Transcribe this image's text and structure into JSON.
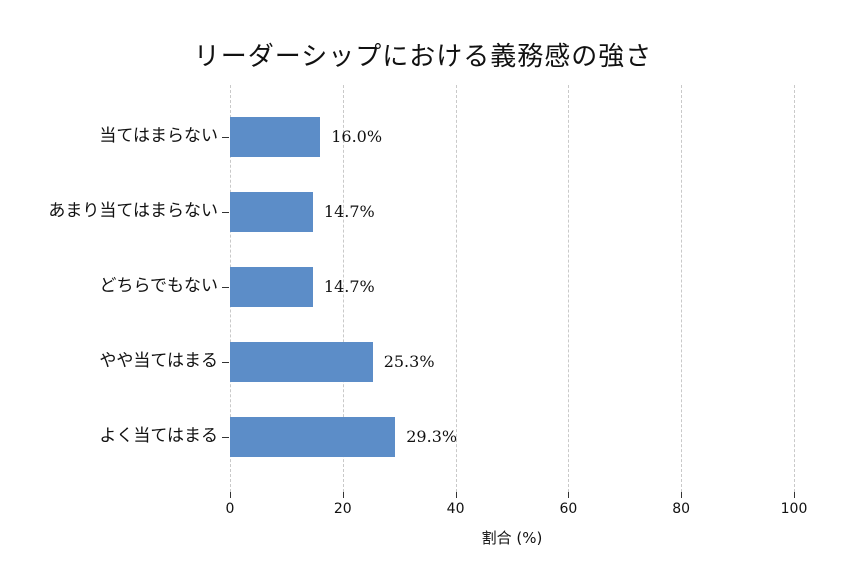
{
  "chart_data": {
    "type": "bar",
    "orientation": "horizontal",
    "title": "リーダーシップにおける義務感の強さ",
    "xlabel": "割合 (%)",
    "ylabel": "",
    "categories": [
      "当てはまらない",
      "あまり当てはまらない",
      "どちらでもない",
      "やや当てはまる",
      "よく当てはまる"
    ],
    "values": [
      16.0,
      14.7,
      14.7,
      25.3,
      29.3
    ],
    "value_labels": [
      "16.0%",
      "14.7%",
      "14.7%",
      "25.3%",
      "29.3%"
    ],
    "xlim": [
      0,
      100
    ],
    "xticks": [
      0,
      20,
      40,
      60,
      80,
      100
    ],
    "xtick_labels": [
      "0",
      "20",
      "40",
      "60",
      "80",
      "100"
    ],
    "grid": "vertical-dashed",
    "legend": "none",
    "colors": {
      "bar": "#5c8dc8",
      "gridline": "#c9c9c9",
      "tick": "#333333",
      "text": "#111111",
      "background": "#ffffff"
    }
  }
}
